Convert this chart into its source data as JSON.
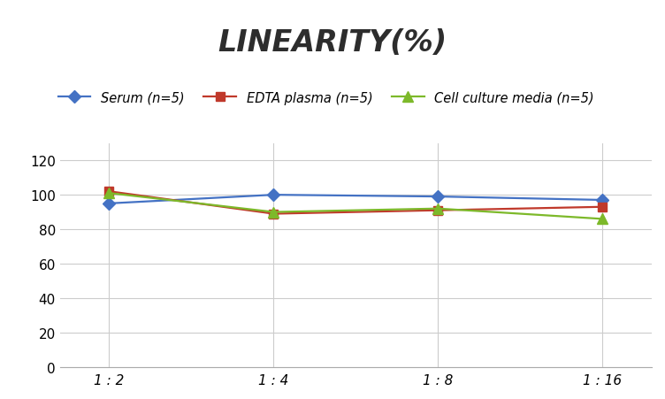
{
  "title": "LINEARITY(%)",
  "x_labels": [
    "1 : 2",
    "1 : 4",
    "1 : 8",
    "1 : 16"
  ],
  "x_positions": [
    0,
    1,
    2,
    3
  ],
  "series": [
    {
      "label": "Serum (n=5)",
      "values": [
        95,
        100,
        99,
        97
      ],
      "color": "#4472C4",
      "marker": "D",
      "markersize": 7,
      "linewidth": 1.6
    },
    {
      "label": "EDTA plasma (n=5)",
      "values": [
        102,
        89,
        91,
        93
      ],
      "color": "#C0392B",
      "marker": "s",
      "markersize": 7,
      "linewidth": 1.6
    },
    {
      "label": "Cell culture media (n=5)",
      "values": [
        101,
        90,
        92,
        86
      ],
      "color": "#7DB92A",
      "marker": "^",
      "markersize": 8,
      "linewidth": 1.6
    }
  ],
  "ylim": [
    0,
    130
  ],
  "yticks": [
    0,
    20,
    40,
    60,
    80,
    100,
    120
  ],
  "background_color": "#ffffff",
  "title_fontsize": 24,
  "legend_fontsize": 10.5,
  "tick_fontsize": 11,
  "grid_color": "#cccccc",
  "grid_linewidth": 0.8,
  "spine_color": "#aaaaaa"
}
